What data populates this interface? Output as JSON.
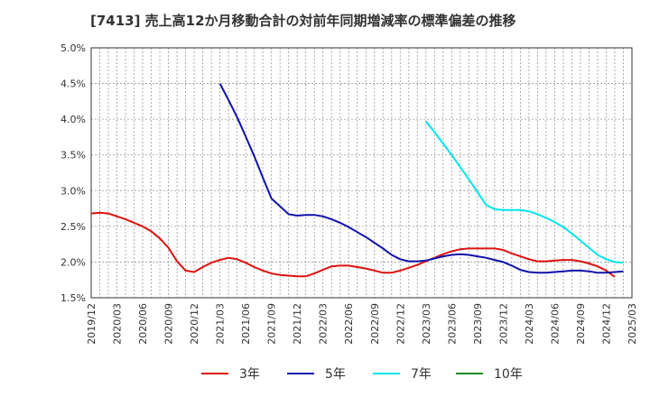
{
  "chart_data": {
    "type": "line",
    "title": "[7413]  売上高12か月移動合計の対前年同期増減率の標準偏差の推移",
    "x_ticks": [
      "2019/12",
      "2020/03",
      "2020/06",
      "2020/09",
      "2020/12",
      "2021/03",
      "2021/06",
      "2021/09",
      "2021/12",
      "2022/03",
      "2022/06",
      "2022/09",
      "2022/12",
      "2023/03",
      "2023/06",
      "2023/09",
      "2023/12",
      "2024/03",
      "2024/06",
      "2024/09",
      "2024/12",
      "2025/03"
    ],
    "y_ticks": [
      "1.5%",
      "2.0%",
      "2.5%",
      "3.0%",
      "3.5%",
      "4.0%",
      "4.5%",
      "5.0%"
    ],
    "ylim": [
      1.5,
      5.0
    ],
    "grid": true,
    "legend_position": "bottom",
    "series": [
      {
        "name": "3年",
        "color": "#dd1111",
        "start_index": 0,
        "values": [
          2.68,
          2.69,
          2.68,
          2.64,
          2.6,
          2.55,
          2.5,
          2.43,
          2.33,
          2.2,
          2.01,
          1.88,
          1.86,
          1.93,
          1.99,
          2.03,
          2.06,
          2.04,
          1.99,
          1.93,
          1.88,
          1.84,
          1.82,
          1.81,
          1.8,
          1.8,
          1.84,
          1.89,
          1.94,
          1.95,
          1.95,
          1.93,
          1.91,
          1.88,
          1.85,
          1.85,
          1.88,
          1.92,
          1.96,
          2.01,
          2.06,
          2.11,
          2.15,
          2.18,
          2.19,
          2.19,
          2.19,
          2.19,
          2.17,
          2.12,
          2.08,
          2.04,
          2.01,
          2.01,
          2.02,
          2.03,
          2.03,
          2.01,
          1.98,
          1.94,
          1.88,
          1.79
        ]
      },
      {
        "name": "5年",
        "color": "#1111aa",
        "start_index": 15,
        "values": [
          4.5,
          4.27,
          4.03,
          3.76,
          3.48,
          3.18,
          2.89,
          2.78,
          2.67,
          2.65,
          2.66,
          2.66,
          2.64,
          2.6,
          2.55,
          2.49,
          2.42,
          2.35,
          2.27,
          2.19,
          2.1,
          2.04,
          2.01,
          2.01,
          2.02,
          2.05,
          2.08,
          2.1,
          2.11,
          2.1,
          2.08,
          2.06,
          2.03,
          2.0,
          1.95,
          1.89,
          1.86,
          1.85,
          1.85,
          1.86,
          1.87,
          1.88,
          1.88,
          1.87,
          1.85,
          1.85,
          1.86,
          1.87
        ]
      },
      {
        "name": "7年",
        "color": "#00e5ee",
        "start_index": 39,
        "values": [
          3.97,
          3.82,
          3.66,
          3.5,
          3.33,
          3.16,
          2.98,
          2.8,
          2.74,
          2.73,
          2.73,
          2.73,
          2.71,
          2.67,
          2.62,
          2.56,
          2.49,
          2.4,
          2.3,
          2.2,
          2.1,
          2.04,
          2.0,
          1.99
        ]
      },
      {
        "name": "10年",
        "color": "#228822",
        "start_index": 0,
        "values": []
      }
    ]
  }
}
